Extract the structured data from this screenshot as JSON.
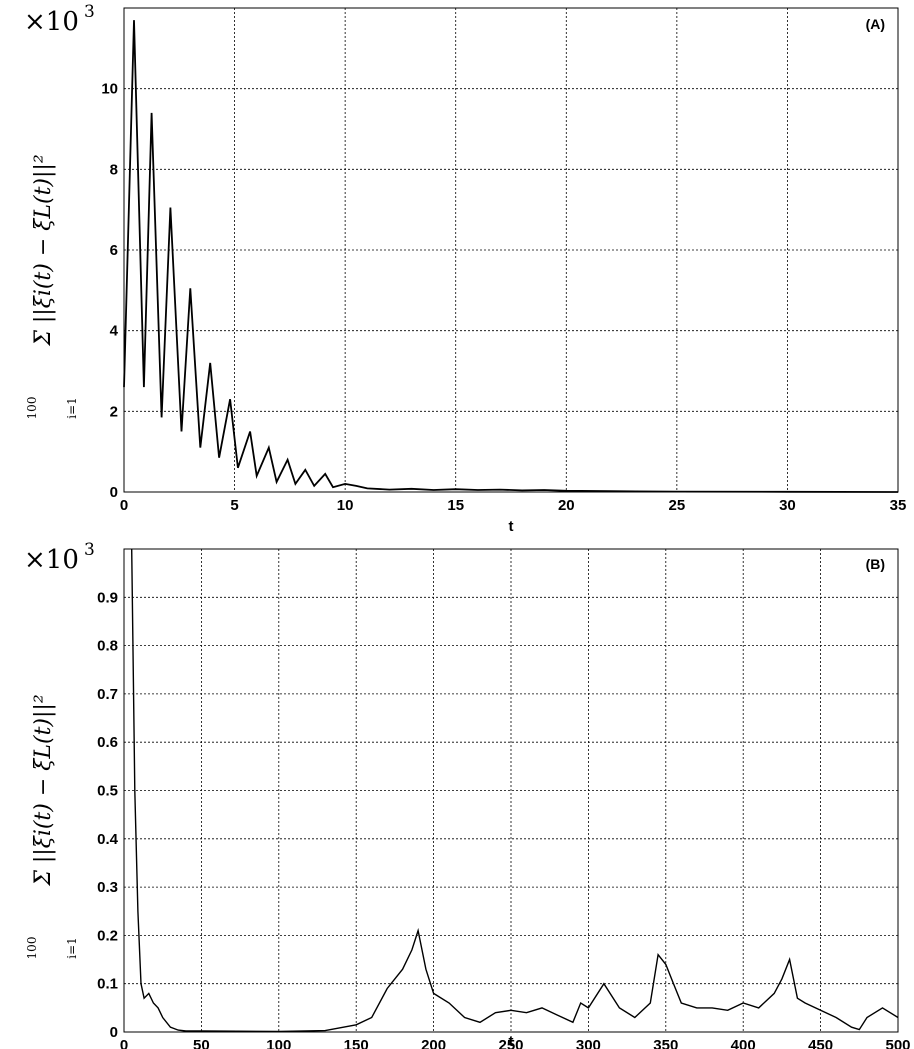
{
  "chart_data": [
    {
      "type": "line",
      "panel_label": "(A)",
      "scale_factor": "×10",
      "scale_exponent": "3",
      "xlabel": "t",
      "ylabel": "Σ ||ξi(t) − ξL(t)||²",
      "ylabel_sum_upper": "100",
      "ylabel_sum_lower": "i=1",
      "xlim": [
        0,
        35
      ],
      "ylim": [
        0,
        12
      ],
      "xticks": [
        0,
        5,
        10,
        15,
        20,
        25,
        30,
        35
      ],
      "yticks": [
        0,
        2,
        4,
        6,
        8,
        10
      ],
      "grid": true,
      "color": "#000000",
      "series": [
        {
          "x": [
            0,
            0.45,
            0.9,
            1.25,
            1.7,
            2.1,
            2.6,
            3.0,
            3.45,
            3.9,
            4.3,
            4.8,
            5.15,
            5.7,
            6.0,
            6.55,
            6.9,
            7.4,
            7.75,
            8.2,
            8.6,
            9.1,
            9.45,
            10.0,
            10.5,
            11.0,
            12.0,
            13.0,
            14.0,
            15.0,
            16.0,
            17.0,
            18.0,
            19.0,
            20.0,
            22.0,
            25.0,
            30.0,
            35.0
          ],
          "y": [
            2.6,
            11.7,
            2.6,
            9.4,
            1.85,
            7.05,
            1.5,
            5.05,
            1.1,
            3.2,
            0.85,
            2.3,
            0.6,
            1.5,
            0.4,
            1.1,
            0.25,
            0.8,
            0.2,
            0.55,
            0.15,
            0.45,
            0.12,
            0.2,
            0.15,
            0.09,
            0.06,
            0.08,
            0.05,
            0.07,
            0.05,
            0.06,
            0.04,
            0.05,
            0.03,
            0.02,
            0.01,
            0.005,
            0.0
          ]
        }
      ]
    },
    {
      "type": "line",
      "panel_label": "(B)",
      "scale_factor": "×10",
      "scale_exponent": "3",
      "xlabel": "t",
      "ylabel": "Σ ||ξi(t) − ξL(t)||²",
      "ylabel_sum_upper": "100",
      "ylabel_sum_lower": "i=1",
      "xlim": [
        0,
        500
      ],
      "ylim": [
        0,
        1
      ],
      "xticks": [
        0,
        50,
        100,
        150,
        200,
        250,
        300,
        350,
        400,
        450,
        500
      ],
      "yticks": [
        0,
        0.1,
        0.2,
        0.3,
        0.4,
        0.5,
        0.6,
        0.7,
        0.8,
        0.9
      ],
      "grid": true,
      "color": "#000000",
      "series": [
        {
          "x": [
            5,
            7,
            9,
            11,
            13,
            16,
            19,
            22,
            25,
            30,
            35,
            40,
            50,
            100,
            130,
            150,
            160,
            170,
            180,
            186,
            190,
            195,
            200,
            210,
            220,
            230,
            240,
            250,
            260,
            270,
            280,
            290,
            295,
            300,
            310,
            320,
            330,
            340,
            345,
            350,
            355,
            360,
            370,
            380,
            390,
            400,
            410,
            420,
            425,
            430,
            435,
            440,
            450,
            460,
            470,
            475,
            480,
            490,
            500
          ],
          "y": [
            1.0,
            0.5,
            0.25,
            0.1,
            0.07,
            0.08,
            0.06,
            0.05,
            0.03,
            0.01,
            0.004,
            0.002,
            0.002,
            0.001,
            0.003,
            0.015,
            0.03,
            0.09,
            0.13,
            0.17,
            0.21,
            0.13,
            0.08,
            0.06,
            0.03,
            0.02,
            0.04,
            0.045,
            0.04,
            0.05,
            0.035,
            0.02,
            0.06,
            0.05,
            0.1,
            0.05,
            0.03,
            0.06,
            0.16,
            0.14,
            0.1,
            0.06,
            0.05,
            0.05,
            0.045,
            0.06,
            0.05,
            0.08,
            0.11,
            0.15,
            0.07,
            0.06,
            0.045,
            0.03,
            0.01,
            0.005,
            0.03,
            0.05,
            0.03
          ]
        }
      ]
    }
  ]
}
